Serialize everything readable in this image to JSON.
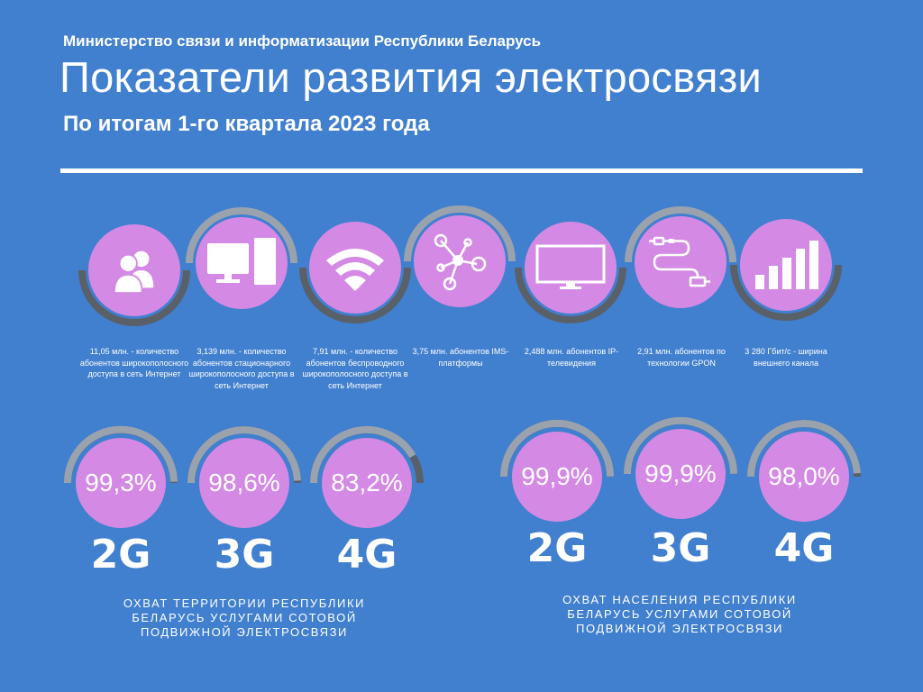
{
  "header": {
    "ministry": "Министерство связи и информатизации Республики Беларусь",
    "title": "Показатели развития электросвязи",
    "subtitle": "По итогам 1-го квартала 2023 года"
  },
  "indicators": [
    {
      "icon": "users-icon",
      "caption": "11,05 млн. - количество абонентов широкополосного доступа в сеть Интернет"
    },
    {
      "icon": "computer-icon",
      "caption": "3,139 млн. - количество абонентов стационарного широкополосного доступа в сеть Интернет"
    },
    {
      "icon": "wifi-icon",
      "caption": "7,91 млн. - количество абонентов беспроводного широкополосного доступа в сеть Интернет"
    },
    {
      "icon": "network-nodes-icon",
      "caption": "3,75 млн. абонентов IMS-платформы"
    },
    {
      "icon": "tv-monitor-icon",
      "caption": "2,488 млн. абонентов IP-телевидения"
    },
    {
      "icon": "cable-icon",
      "caption": "2,91 млн. абонентов по технологии GPON"
    },
    {
      "icon": "signal-bars-icon",
      "caption": "3 280 Гбит/с - ширина внешнего канала"
    }
  ],
  "territory": {
    "label": "ОХВАТ ТЕРРИТОРИИ РЕСПУБЛИКИ БЕЛАРУСЬ УСЛУГАМИ СОТОВОЙ ПОДВИЖНОЙ ЭЛЕКТРОСВЯЗИ",
    "items": [
      {
        "value": "99,3%",
        "gen": "2G",
        "fraction": 0.993
      },
      {
        "value": "98,6%",
        "gen": "3G",
        "fraction": 0.986
      },
      {
        "value": "83,2%",
        "gen": "4G",
        "fraction": 0.832
      }
    ]
  },
  "population": {
    "label": "ОХВАТ НАСЕЛЕНИЯ РЕСПУБЛИКИ БЕЛАРУСЬ УСЛУГАМИ СОТОВОЙ ПОДВИЖНОЙ ЭЛЕКТРОСВЯЗИ",
    "items": [
      {
        "value": "99,9%",
        "gen": "2G",
        "fraction": 0.999
      },
      {
        "value": "99,9%",
        "gen": "3G",
        "fraction": 0.999
      },
      {
        "value": "98,0%",
        "gen": "4G",
        "fraction": 0.98
      }
    ]
  },
  "colors": {
    "background": "#417fcf",
    "accent": "#d48ae4",
    "ring_dark": "#5a6068",
    "ring_light": "#9aa3ad"
  }
}
